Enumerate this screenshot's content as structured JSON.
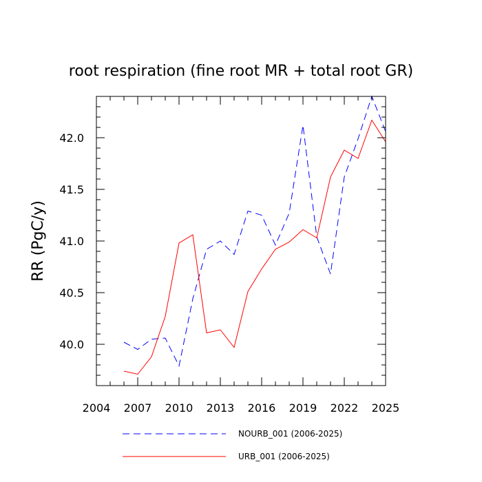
{
  "chart_data": {
    "type": "line",
    "title": "root respiration (fine root MR + total root GR)",
    "xlabel": "",
    "ylabel": "RR  (PgC/y)",
    "xlim": [
      2004,
      2025
    ],
    "ylim": [
      39.6,
      42.4
    ],
    "x_ticks": [
      2004,
      2007,
      2010,
      2013,
      2016,
      2019,
      2022,
      2025
    ],
    "x_tick_labels": [
      "2004",
      "2007",
      "2010",
      "2013",
      "2016",
      "2019",
      "2022",
      "2025"
    ],
    "y_ticks": [
      40.0,
      40.5,
      41.0,
      41.5,
      42.0
    ],
    "y_tick_labels": [
      "40.0",
      "40.5",
      "41.0",
      "41.5",
      "42.0"
    ],
    "x": [
      2006,
      2007,
      2008,
      2009,
      2010,
      2011,
      2012,
      2013,
      2014,
      2015,
      2016,
      2017,
      2018,
      2019,
      2020,
      2021,
      2022,
      2023,
      2024,
      2025
    ],
    "series": [
      {
        "name": "NOURB_001 (2006-2025)",
        "color": "#0000ff",
        "style": "dashed",
        "values": [
          40.02,
          39.95,
          40.05,
          40.06,
          39.79,
          40.44,
          40.92,
          41.0,
          40.87,
          41.29,
          41.25,
          40.96,
          41.27,
          42.12,
          41.04,
          40.68,
          41.62,
          41.99,
          42.4,
          42.06
        ]
      },
      {
        "name": "URB_001 (2006-2025)",
        "color": "#ff0000",
        "style": "solid",
        "values": [
          39.74,
          39.71,
          39.88,
          40.27,
          40.98,
          41.06,
          40.11,
          40.14,
          39.97,
          40.51,
          40.73,
          40.92,
          40.99,
          41.11,
          41.03,
          41.62,
          41.88,
          41.8,
          42.17,
          41.96
        ]
      }
    ],
    "legend_position": "bottom"
  }
}
